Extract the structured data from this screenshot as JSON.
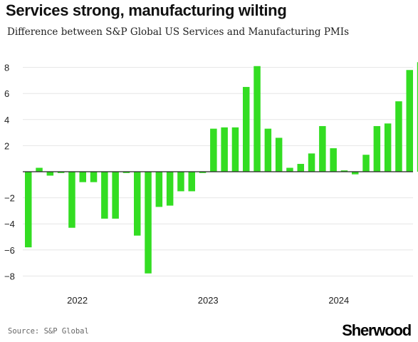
{
  "title": "Services strong, manufacturing wilting",
  "subtitle": "Difference between S&P Global US Services and Manufacturing PMIs",
  "source": "Source: S&P Global",
  "logo": "Sherwood",
  "colors": {
    "bar": "#33dd22",
    "grid": "#e6e6e6",
    "zero": "#222222",
    "text": "#222222"
  },
  "chart_data": {
    "type": "bar",
    "title": "Services strong, manufacturing wilting",
    "subtitle": "Difference between S&P Global US Services and Manufacturing PMIs",
    "ylim": [
      -9,
      9
    ],
    "yticks": [
      -8,
      -6,
      -4,
      -2,
      0,
      2,
      4,
      6,
      8
    ],
    "ytick_labels": [
      "−8",
      "−6",
      "−4",
      "−2",
      "",
      "2",
      "4",
      "6",
      "8"
    ],
    "x_year_labels": [
      {
        "label": "2022",
        "index": 4.5
      },
      {
        "label": "2023",
        "index": 16.5
      },
      {
        "label": "2024",
        "index": 28.5
      }
    ],
    "grid": true,
    "legend": "none",
    "values": [
      -5.8,
      0.3,
      -0.3,
      -0.1,
      -4.3,
      -0.8,
      -0.8,
      -3.6,
      -3.6,
      -0.1,
      -4.9,
      -7.8,
      -2.7,
      -2.6,
      -1.5,
      -1.5,
      -0.1,
      3.3,
      3.4,
      3.4,
      6.5,
      8.1,
      3.3,
      2.6,
      0.3,
      0.6,
      1.4,
      3.5,
      1.8,
      0.1,
      -0.2,
      1.3,
      3.5,
      3.7,
      5.4,
      7.8,
      8.4
    ]
  }
}
